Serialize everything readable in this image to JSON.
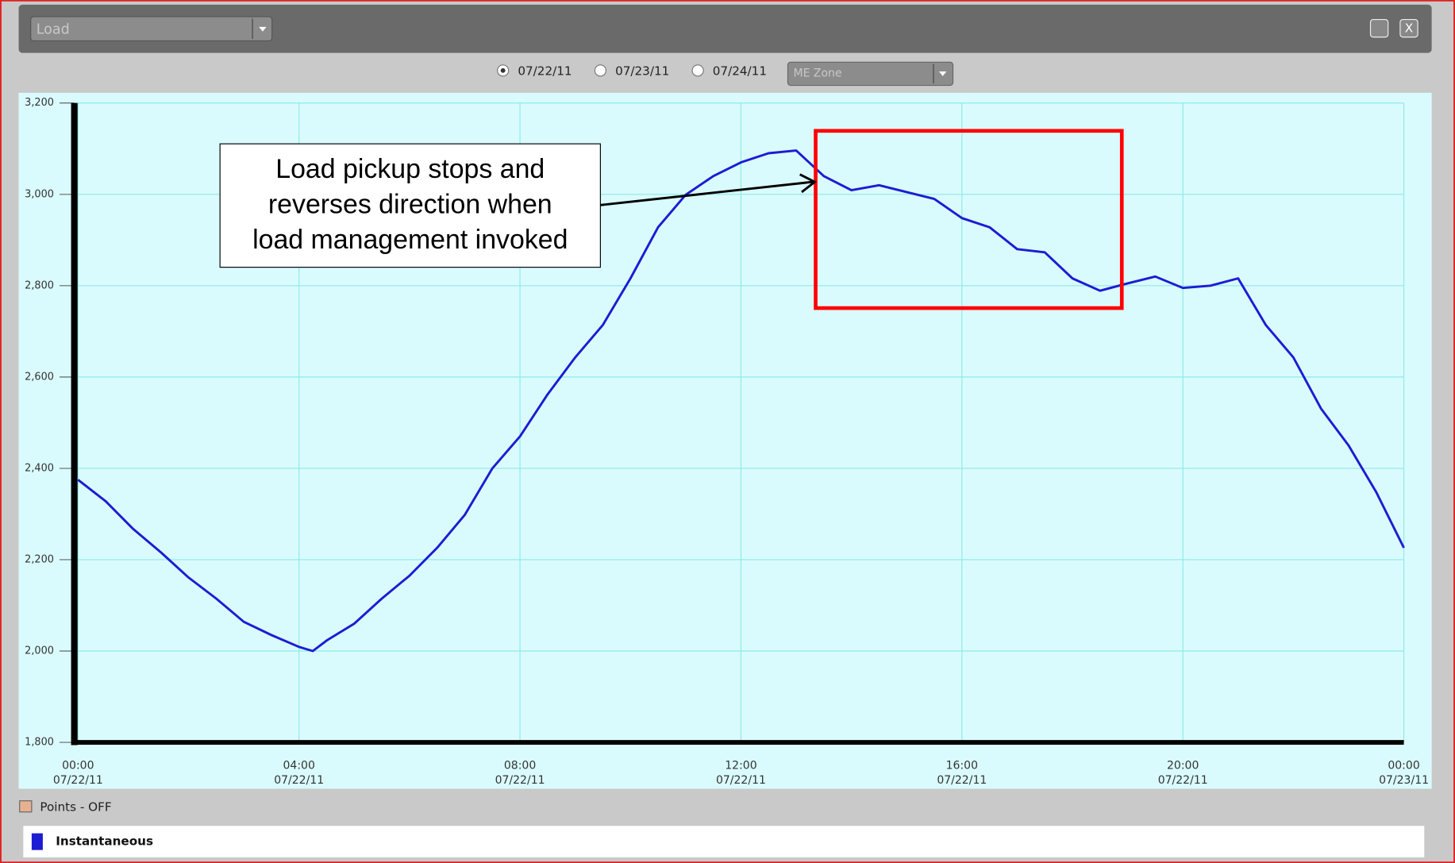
{
  "ui": {
    "view_select": "Load",
    "dates": [
      "07/22/11",
      "07/23/11",
      "07/24/11"
    ],
    "zone_select": "ME Zone",
    "points_toggle": "Points - OFF",
    "close_button": "X"
  },
  "chart_data": {
    "type": "line",
    "annotation": [
      "Load pickup stops and",
      "reverses direction when",
      "load management invoked"
    ],
    "x": [
      0,
      0.5,
      1,
      1.5,
      2,
      2.5,
      3,
      3.5,
      4,
      4.25,
      4.5,
      5,
      5.5,
      6,
      6.5,
      7,
      7.5,
      8,
      8.5,
      9,
      9.5,
      10,
      10.5,
      11,
      11.5,
      12,
      12.5,
      13,
      13.5,
      14,
      14.5,
      15,
      15.5,
      16,
      16.5,
      17,
      17.5,
      18,
      18.5,
      19,
      19.5,
      20,
      20.5,
      21,
      21.5,
      22,
      22.5,
      23,
      23.5,
      24
    ],
    "series": [
      {
        "name": "Instantaneous",
        "color": "#1c1cd4",
        "values": [
          2375,
          2328,
          2267,
          2216,
          2161,
          2115,
          2064,
          2035,
          2009,
          2000,
          2023,
          2060,
          2115,
          2165,
          2226,
          2298,
          2400,
          2470,
          2562,
          2643,
          2714,
          2816,
          2928,
          2999,
          3040,
          3070,
          3090,
          3096,
          3040,
          3009,
          3020,
          3005,
          2990,
          2948,
          2928,
          2880,
          2873,
          2816,
          2789,
          2805,
          2820,
          2795,
          2800,
          2816,
          2714,
          2643,
          2531,
          2450,
          2348,
          2226
        ]
      }
    ],
    "xlim": [
      0,
      24
    ],
    "xticks": [
      {
        "value": 0,
        "label": "00:00",
        "date": "07/22/11"
      },
      {
        "value": 4,
        "label": "04:00",
        "date": "07/22/11"
      },
      {
        "value": 8,
        "label": "08:00",
        "date": "07/22/11"
      },
      {
        "value": 12,
        "label": "12:00",
        "date": "07/22/11"
      },
      {
        "value": 16,
        "label": "16:00",
        "date": "07/22/11"
      },
      {
        "value": 20,
        "label": "20:00",
        "date": "07/22/11"
      },
      {
        "value": 24,
        "label": "00:00",
        "date": "07/23/11"
      }
    ],
    "ylim": [
      1800,
      3200
    ],
    "yticks": [
      {
        "value": 1800,
        "label": "1,800"
      },
      {
        "value": 2000,
        "label": "2,000"
      },
      {
        "value": 2200,
        "label": "2,200"
      },
      {
        "value": 2400,
        "label": "2,400"
      },
      {
        "value": 2600,
        "label": "2,600"
      },
      {
        "value": 2800,
        "label": "2,800"
      },
      {
        "value": 3000,
        "label": "3,000"
      },
      {
        "value": 3200,
        "label": "3,200"
      }
    ],
    "grid": true
  }
}
